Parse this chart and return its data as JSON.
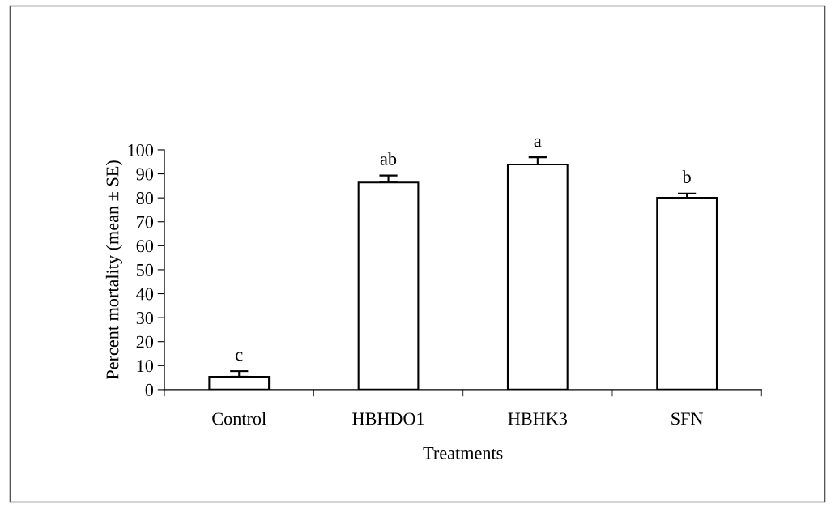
{
  "chart_data": {
    "type": "bar",
    "xlabel": "Treatments",
    "ylabel": "Percent mortality (mean ± SE)",
    "categories": [
      "Control",
      "HBHDO1",
      "HBHK3",
      "SFN"
    ],
    "values": [
      5.4,
      86.4,
      93.9,
      80.0
    ],
    "errors": [
      [
        5.4,
        7.7
      ],
      [
        86.4,
        89.3
      ],
      [
        93.9,
        96.9
      ],
      [
        80.0,
        81.8
      ]
    ],
    "color": "#ffffff",
    "ylim": [
      0,
      100
    ],
    "yticks": [
      0,
      10,
      20,
      30,
      40,
      50,
      60,
      70,
      80,
      90,
      100
    ],
    "grid": false,
    "legend": false,
    "annotations": [
      {
        "text": "c",
        "x": "Control",
        "y": 7.7
      },
      {
        "text": "ab",
        "x": "HBHDO1",
        "y": 89.3
      },
      {
        "text": "a",
        "x": "HBHK3",
        "y": 96.9
      },
      {
        "text": "b",
        "x": "SFN",
        "y": 81.8
      }
    ]
  }
}
